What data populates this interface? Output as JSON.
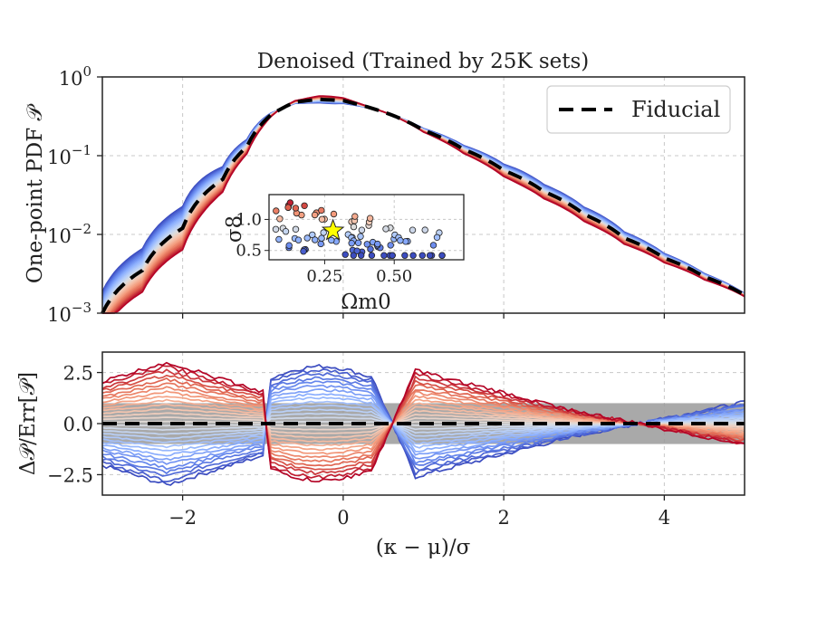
{
  "chart_data": [
    {
      "type": "line",
      "panel": "top",
      "title": "Denoised (Trained by 25K sets)",
      "xlabel": "",
      "ylabel": "One-point PDF 𝒫",
      "yscale": "log",
      "xlim": [
        -3,
        5
      ],
      "ylim": [
        0.001,
        1
      ],
      "xticks": [
        -2,
        0,
        2,
        4
      ],
      "yticks": [
        {
          "value": 1,
          "base": "10",
          "exp": "0"
        },
        {
          "value": 0.1,
          "base": "10",
          "exp": "−1"
        },
        {
          "value": 0.01,
          "base": "10",
          "exp": "−2"
        },
        {
          "value": 0.001,
          "base": "10",
          "exp": "−3"
        }
      ],
      "grid": true,
      "legend": {
        "position": "top-right",
        "entries": [
          "Fiducial"
        ]
      },
      "fiducial": {
        "name": "Fiducial",
        "x": [
          -3,
          -2.5,
          -2,
          -1.5,
          -1.2,
          -0.9,
          -0.6,
          -0.3,
          0,
          0.5,
          1,
          1.5,
          2,
          2.5,
          3,
          3.5,
          4,
          4.5,
          5
        ],
        "y": [
          0.001,
          0.0035,
          0.012,
          0.05,
          0.13,
          0.33,
          0.48,
          0.52,
          0.5,
          0.36,
          0.21,
          0.12,
          0.065,
          0.035,
          0.018,
          0.009,
          0.005,
          0.0029,
          0.0017
        ]
      },
      "ensemble": {
        "count": 30,
        "colormap": "coolwarm",
        "note": "one curve per cosmology, colored blue (low sigma8) to red (high sigma8)"
      }
    },
    {
      "type": "scatter",
      "panel": "inset",
      "xlabel": "Ωm0",
      "ylabel": "σ8",
      "xlim": [
        0.05,
        0.75
      ],
      "ylim": [
        0.35,
        1.4
      ],
      "xticks": [
        0.25,
        0.5
      ],
      "xticklabels": [
        "0.25",
        "0.50"
      ],
      "yticks": [
        0.5,
        1.0
      ],
      "yticklabels": [
        "0.5",
        "1.0"
      ],
      "fiducial_point": {
        "x": 0.28,
        "y": 0.82,
        "marker": "star",
        "color": "#ffff00"
      },
      "colormap": "coolwarm"
    },
    {
      "type": "line",
      "panel": "bottom",
      "xlabel": "(κ − μ)/σ",
      "ylabel": "Δ𝒫/Err[𝒫]",
      "xlim": [
        -3,
        5
      ],
      "ylim": [
        -3.5,
        3.5
      ],
      "xticks": [
        -2,
        0,
        2,
        4
      ],
      "xticklabels": [
        "−2",
        "0",
        "2",
        "4"
      ],
      "yticks": [
        2.5,
        0.0,
        -2.5
      ],
      "yticklabels": [
        "2.5",
        "0.0",
        "−2.5"
      ],
      "grid": true,
      "reference": {
        "y": 0.0,
        "style": "dashed",
        "color": "#000000"
      },
      "error_band": {
        "lower": -1.0,
        "upper": 1.0,
        "color": "#9a9a9a"
      },
      "ensemble": {
        "count": 30,
        "colormap": "coolwarm"
      }
    }
  ]
}
